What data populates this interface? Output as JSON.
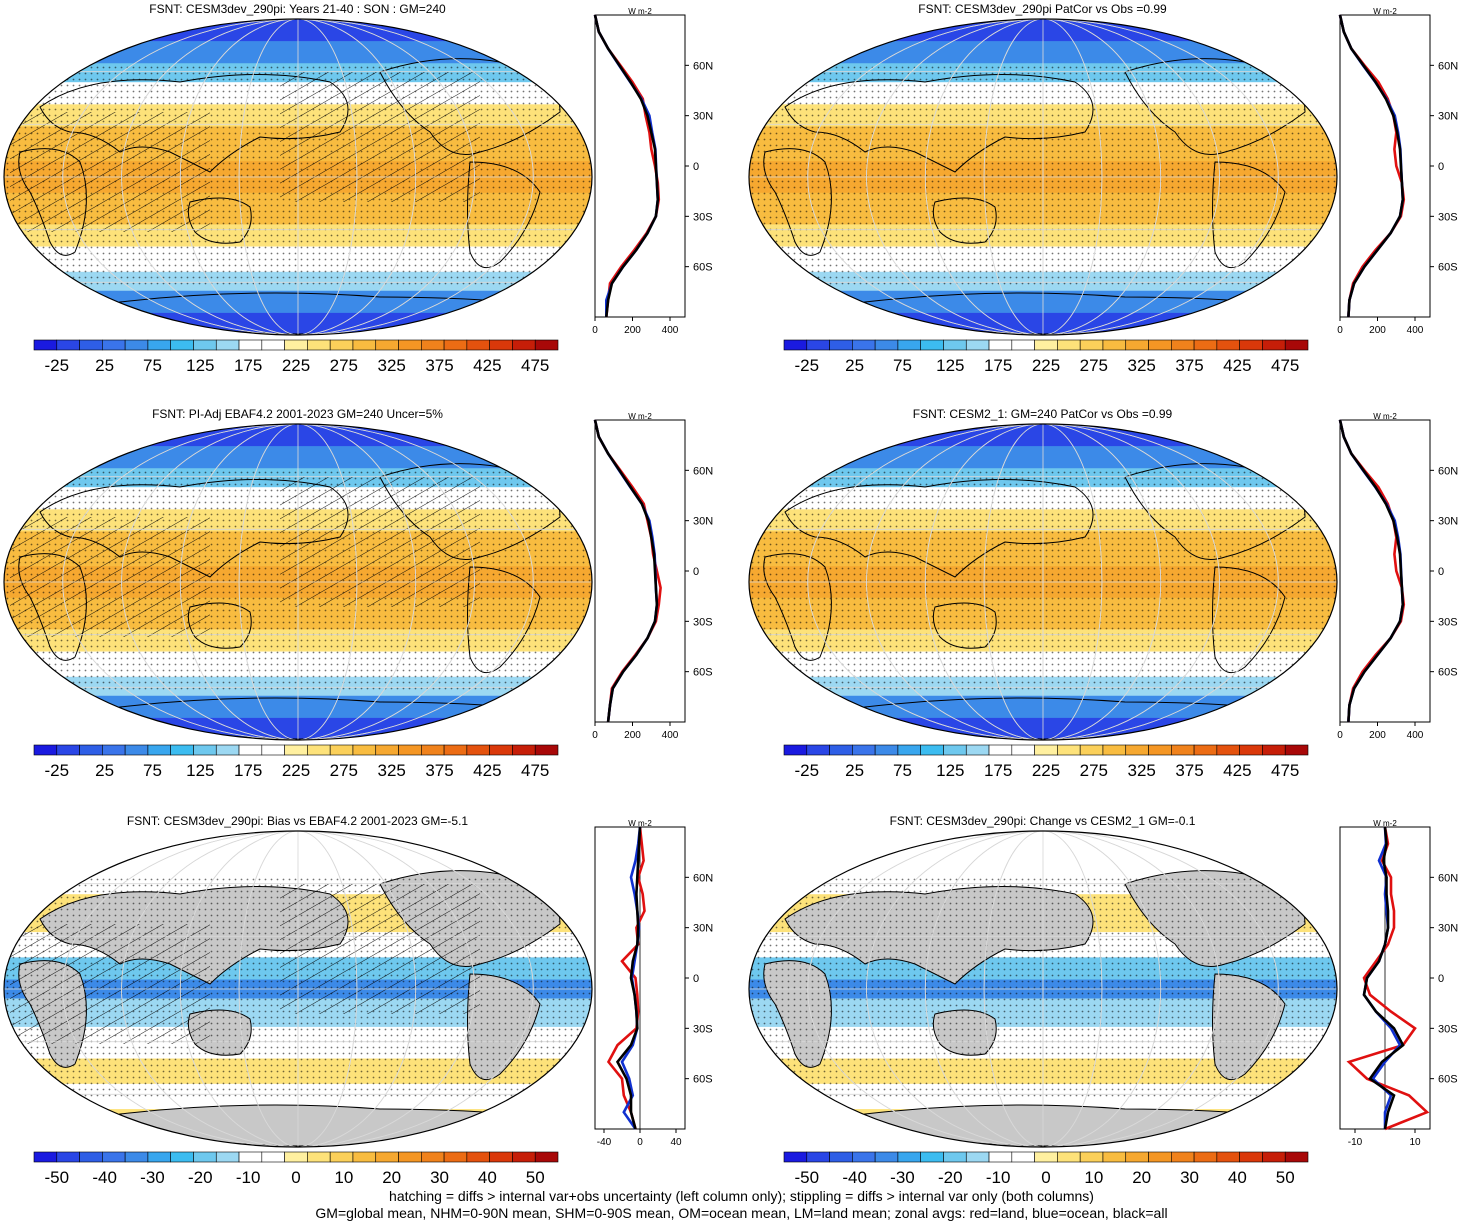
{
  "figure_caption": {
    "line1": "hatching = diffs > internal var+obs uncertainty (left column only); stippling = diffs > internal var only (both columns)",
    "line2": "GM=global mean, NHM=0-90N mean, SHM=0-90S mean, OM=ocean mean, LM=land mean; zonal avgs: red=land, blue=ocean, black=all"
  },
  "colors": {
    "land": "#e01010",
    "ocean": "#1030d0",
    "all": "#000000",
    "missing_land": "#c8c8c8"
  },
  "colorbars": {
    "abs": {
      "labels": [
        "-25",
        "25",
        "75",
        "125",
        "175",
        "225",
        "275",
        "325",
        "375",
        "425",
        "475"
      ],
      "colors": [
        "#1a1ae0",
        "#2a46e6",
        "#2e5ee6",
        "#3a74ea",
        "#3c8ae8",
        "#38a6ee",
        "#3cbcf0",
        "#6ec8ee",
        "#9cd8f2",
        "#ffffff",
        "#ffffff",
        "#fff0a0",
        "#fde27a",
        "#fbd05a",
        "#f8bc40",
        "#f6a830",
        "#f49624",
        "#f0821c",
        "#ec6c14",
        "#e4520e",
        "#da380a",
        "#c61e08",
        "#a80808"
      ]
    },
    "diff": {
      "labels": [
        "-50",
        "-40",
        "-30",
        "-20",
        "-10",
        "0",
        "10",
        "20",
        "30",
        "40",
        "50"
      ],
      "colors": [
        "#1a1ae0",
        "#2a46e6",
        "#2e5ee6",
        "#3a74ea",
        "#3c8ae8",
        "#38a6ee",
        "#3cbcf0",
        "#6ec8ee",
        "#9cd8f2",
        "#ffffff",
        "#ffffff",
        "#fff0a0",
        "#fde27a",
        "#fbd05a",
        "#f8bc40",
        "#f6a830",
        "#f49624",
        "#f0821c",
        "#ec6c14",
        "#e4520e",
        "#da380a",
        "#c61e08",
        "#a80808"
      ]
    }
  },
  "chart_data": [
    {
      "type": "heatmap",
      "id": "p1",
      "title": "FSNT: CESM3dev_290pi: Years 21-40 : SON : GM=240",
      "field": "abs",
      "hatched": true,
      "zonal": {
        "xlim": [
          0,
          480
        ],
        "xticks": [
          "0",
          "200",
          "400"
        ],
        "units": "W m-2",
        "lat_ticks": [
          "60N",
          "30N",
          "0",
          "30S",
          "60S"
        ],
        "lat": [
          90,
          80,
          70,
          60,
          50,
          40,
          30,
          20,
          10,
          0,
          -10,
          -20,
          -30,
          -40,
          -50,
          -60,
          -70,
          -80,
          -90
        ],
        "all": [
          0,
          20,
          70,
          130,
          190,
          245,
          280,
          300,
          320,
          325,
          330,
          335,
          325,
          280,
          220,
          150,
          90,
          70,
          60
        ],
        "land": [
          0,
          20,
          70,
          135,
          200,
          255,
          270,
          290,
          300,
          320,
          335,
          340,
          325,
          275,
          210,
          140,
          80,
          70,
          60
        ],
        "ocean": [
          0,
          20,
          70,
          128,
          188,
          248,
          290,
          305,
          322,
          326,
          330,
          335,
          325,
          280,
          220,
          150,
          90,
          60,
          60
        ]
      }
    },
    {
      "type": "heatmap",
      "id": "p2",
      "title": "FSNT: CESM3dev_290pi PatCor vs Obs =0.99",
      "field": "abs",
      "hatched": false,
      "zonal": {
        "xlim": [
          0,
          480
        ],
        "xticks": [
          "0",
          "200",
          "400"
        ],
        "units": "W m-2",
        "lat_ticks": [
          "60N",
          "30N",
          "0",
          "30S",
          "60S"
        ],
        "lat": [
          90,
          80,
          70,
          60,
          50,
          40,
          30,
          20,
          10,
          0,
          -10,
          -20,
          -30,
          -40,
          -50,
          -60,
          -70,
          -80,
          -90
        ],
        "all": [
          0,
          20,
          60,
          125,
          190,
          245,
          285,
          305,
          320,
          325,
          330,
          335,
          320,
          270,
          200,
          130,
          75,
          50,
          45
        ],
        "land": [
          0,
          20,
          60,
          130,
          205,
          255,
          285,
          300,
          290,
          300,
          330,
          340,
          325,
          270,
          190,
          120,
          70,
          50,
          45
        ],
        "ocean": [
          0,
          20,
          60,
          122,
          188,
          248,
          292,
          310,
          322,
          326,
          330,
          335,
          320,
          270,
          200,
          130,
          75,
          50,
          45
        ]
      }
    },
    {
      "type": "heatmap",
      "id": "p3",
      "title": "FSNT: PI-Adj EBAF4.2 2001-2023 GM=240 Uncer=5%",
      "field": "abs",
      "hatched": true,
      "zonal": {
        "xlim": [
          0,
          480
        ],
        "xticks": [
          "0",
          "200",
          "400"
        ],
        "units": "W m-2",
        "lat_ticks": [
          "60N",
          "30N",
          "0",
          "30S",
          "60S"
        ],
        "lat": [
          90,
          80,
          70,
          60,
          50,
          40,
          30,
          20,
          10,
          0,
          -10,
          -20,
          -30,
          -40,
          -50,
          -60,
          -70,
          -80,
          -90
        ],
        "all": [
          0,
          20,
          70,
          130,
          190,
          250,
          285,
          300,
          315,
          320,
          325,
          330,
          320,
          280,
          220,
          150,
          95,
          80,
          70
        ],
        "land": [
          0,
          20,
          70,
          135,
          200,
          260,
          280,
          300,
          310,
          330,
          350,
          340,
          325,
          280,
          215,
          145,
          90,
          80,
          70
        ],
        "ocean": [
          0,
          20,
          70,
          128,
          188,
          250,
          290,
          306,
          318,
          322,
          325,
          330,
          320,
          280,
          220,
          150,
          95,
          80,
          70
        ]
      }
    },
    {
      "type": "heatmap",
      "id": "p4",
      "title": "FSNT: CESM2_1: GM=240 PatCor vs Obs =0.99",
      "field": "abs",
      "hatched": false,
      "zonal": {
        "xlim": [
          0,
          480
        ],
        "xticks": [
          "0",
          "200",
          "400"
        ],
        "units": "W m-2",
        "lat_ticks": [
          "60N",
          "30N",
          "0",
          "30S",
          "60S"
        ],
        "lat": [
          90,
          80,
          70,
          60,
          50,
          40,
          30,
          20,
          10,
          0,
          -10,
          -20,
          -30,
          -40,
          -50,
          -60,
          -70,
          -80,
          -90
        ],
        "all": [
          0,
          20,
          60,
          125,
          190,
          245,
          285,
          305,
          320,
          325,
          330,
          335,
          320,
          270,
          200,
          130,
          75,
          50,
          45
        ],
        "land": [
          0,
          20,
          60,
          130,
          205,
          255,
          285,
          300,
          290,
          300,
          330,
          340,
          325,
          270,
          190,
          120,
          70,
          50,
          45
        ],
        "ocean": [
          0,
          20,
          60,
          122,
          188,
          248,
          292,
          310,
          322,
          326,
          330,
          335,
          320,
          270,
          200,
          130,
          75,
          50,
          45
        ]
      }
    },
    {
      "type": "heatmap",
      "id": "p5",
      "title": "FSNT: CESM3dev_290pi: Bias vs EBAF4.2 2001-2023  GM=-5.1",
      "field": "diff",
      "hatched": true,
      "zonal": {
        "xlim": [
          -50,
          50
        ],
        "xticks": [
          "-40",
          "0",
          "40"
        ],
        "units": "W m-2",
        "lat_ticks": [
          "60N",
          "30N",
          "0",
          "30S",
          "60S"
        ],
        "lat": [
          90,
          80,
          70,
          60,
          50,
          40,
          30,
          20,
          10,
          0,
          -10,
          -20,
          -30,
          -40,
          -50,
          -60,
          -70,
          -80,
          -90
        ],
        "all": [
          0,
          -1,
          -2,
          -3,
          -4,
          -3,
          -2,
          -3,
          -8,
          -10,
          -6,
          -4,
          -3,
          -10,
          -25,
          -15,
          -10,
          -10,
          -5
        ],
        "land": [
          0,
          2,
          4,
          -2,
          3,
          5,
          -4,
          -2,
          -20,
          -5,
          -3,
          -2,
          -4,
          -25,
          -35,
          -20,
          -18,
          -10,
          -5
        ],
        "ocean": [
          0,
          -2,
          -5,
          -10,
          -6,
          -3,
          -1,
          -3,
          -6,
          -9,
          -6,
          -4,
          -3,
          -8,
          -20,
          -12,
          -8,
          -18,
          -5
        ]
      }
    },
    {
      "type": "heatmap",
      "id": "p6",
      "title": "FSNT: CESM3dev_290pi: Change vs CESM2_1 GM=-0.1",
      "field": "diff",
      "hatched": false,
      "zonal": {
        "xlim": [
          -15,
          15
        ],
        "xticks": [
          "-10",
          "10"
        ],
        "units": "W m-2",
        "lat_ticks": [
          "60N",
          "30N",
          "0",
          "30S",
          "60S"
        ],
        "lat": [
          90,
          80,
          70,
          60,
          50,
          40,
          30,
          20,
          10,
          0,
          -10,
          -20,
          -30,
          -40,
          -50,
          -60,
          -70,
          -80,
          -90
        ],
        "all": [
          0,
          0.5,
          -0.5,
          0.5,
          0.5,
          1,
          1,
          0,
          -2,
          -6,
          -7,
          -3,
          3,
          6,
          -1,
          -5,
          3,
          1,
          0
        ],
        "land": [
          0,
          1,
          -1,
          2,
          2,
          3,
          3,
          1,
          -3,
          -7,
          -5,
          2,
          10,
          6,
          -12,
          -6,
          8,
          14,
          0
        ],
        "ocean": [
          0,
          0.3,
          -2,
          0.5,
          0,
          0.5,
          1,
          0,
          -2,
          -6,
          -7,
          -3,
          2,
          5,
          0,
          -4,
          2,
          0,
          0
        ]
      }
    }
  ]
}
